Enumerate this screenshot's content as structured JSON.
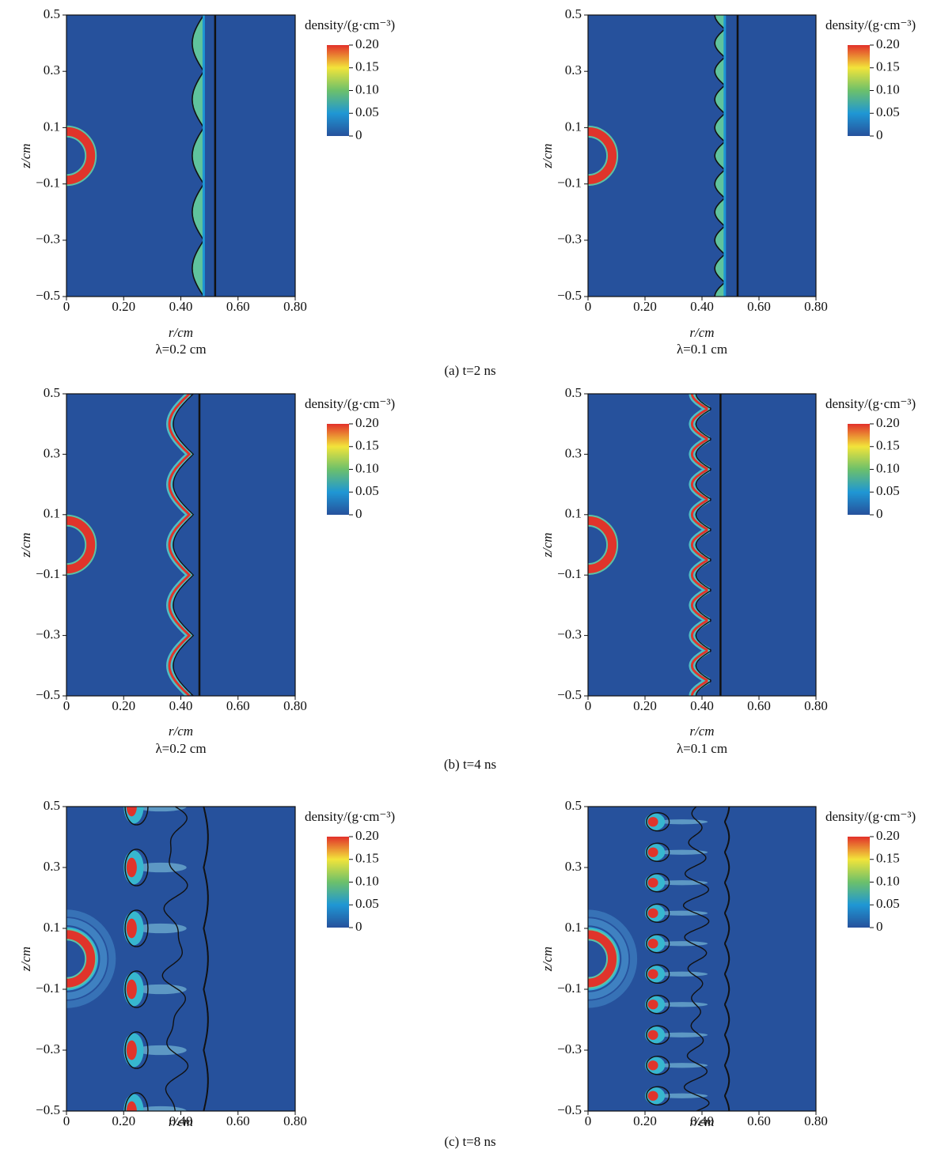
{
  "chart_data": [
    {
      "type": "heatmap",
      "xlabel": "r/cm",
      "ylabel": "z/cm",
      "subtitle": "λ=0.2 cm",
      "xlim": [
        0,
        0.8
      ],
      "xticks": [
        0,
        {
          "value": 0.2,
          "label": "0.20"
        },
        {
          "value": 0.4,
          "label": "0.40"
        },
        {
          "value": 0.6,
          "label": "0.60"
        },
        {
          "value": 0.8,
          "label": "0.80"
        }
      ],
      "ylim": [
        -0.5,
        0.5
      ],
      "yticks": [
        {
          "value": -0.5,
          "label": "−0.5"
        },
        {
          "value": -0.3,
          "label": "−0.3"
        },
        {
          "value": -0.1,
          "label": "−0.1"
        },
        0.1,
        0.3,
        0.5
      ],
      "colorbar": {
        "label": "density/(g·cm⁻³)",
        "lim": [
          0,
          0.2
        ],
        "ticks": [
          0,
          0.05,
          {
            "value": 0.1,
            "label": "0.10"
          },
          0.15,
          {
            "value": 0.2,
            "label": "0.20"
          }
        ],
        "colors": [
          "#26519c",
          "#1f97d4",
          "#6cc06b",
          "#f2e43a",
          "#e2312a"
        ]
      }
    },
    {
      "type": "heatmap",
      "xlabel": "r/cm",
      "ylabel": "z/cm",
      "subtitle": "λ=0.1 cm",
      "xlim": [
        0,
        0.8
      ],
      "xticks": [
        0,
        {
          "value": 0.2,
          "label": "0.20"
        },
        {
          "value": 0.4,
          "label": "0.40"
        },
        {
          "value": 0.6,
          "label": "0.60"
        },
        {
          "value": 0.8,
          "label": "0.80"
        }
      ],
      "ylim": [
        -0.5,
        0.5
      ],
      "yticks": [
        {
          "value": -0.5,
          "label": "−0.5"
        },
        {
          "value": -0.3,
          "label": "−0.3"
        },
        {
          "value": -0.1,
          "label": "−0.1"
        },
        0.1,
        0.3,
        0.5
      ],
      "colorbar": {
        "label": "density/(g·cm⁻³)",
        "lim": [
          0,
          0.2
        ],
        "ticks": [
          0,
          0.05,
          {
            "value": 0.1,
            "label": "0.10"
          },
          0.15,
          {
            "value": 0.2,
            "label": "0.20"
          }
        ],
        "colors": [
          "#26519c",
          "#1f97d4",
          "#6cc06b",
          "#f2e43a",
          "#e2312a"
        ]
      }
    },
    {
      "type": "heatmap",
      "xlabel": "r/cm",
      "ylabel": "z/cm",
      "subtitle": "λ=0.2 cm",
      "xlim": [
        0,
        0.8
      ],
      "xticks": [
        0,
        {
          "value": 0.2,
          "label": "0.20"
        },
        {
          "value": 0.4,
          "label": "0.40"
        },
        {
          "value": 0.6,
          "label": "0.60"
        },
        {
          "value": 0.8,
          "label": "0.80"
        }
      ],
      "ylim": [
        -0.5,
        0.5
      ],
      "yticks": [
        {
          "value": -0.5,
          "label": "−0.5"
        },
        {
          "value": -0.3,
          "label": "−0.3"
        },
        {
          "value": -0.1,
          "label": "−0.1"
        },
        0.1,
        0.3,
        0.5
      ],
      "colorbar": {
        "label": "density/(g·cm⁻³)",
        "lim": [
          0,
          0.2
        ],
        "ticks": [
          0,
          0.05,
          {
            "value": 0.1,
            "label": "0.10"
          },
          0.15,
          {
            "value": 0.2,
            "label": "0.20"
          }
        ],
        "colors": [
          "#26519c",
          "#1f97d4",
          "#6cc06b",
          "#f2e43a",
          "#e2312a"
        ]
      }
    },
    {
      "type": "heatmap",
      "xlabel": "r/cm",
      "ylabel": "z/cm",
      "subtitle": "λ=0.1 cm",
      "xlim": [
        0,
        0.8
      ],
      "xticks": [
        0,
        {
          "value": 0.2,
          "label": "0.20"
        },
        {
          "value": 0.4,
          "label": "0.40"
        },
        {
          "value": 0.6,
          "label": "0.60"
        },
        {
          "value": 0.8,
          "label": "0.80"
        }
      ],
      "ylim": [
        -0.5,
        0.5
      ],
      "yticks": [
        {
          "value": -0.5,
          "label": "−0.5"
        },
        {
          "value": -0.3,
          "label": "−0.3"
        },
        {
          "value": -0.1,
          "label": "−0.1"
        },
        0.1,
        0.3,
        0.5
      ],
      "colorbar": {
        "label": "density/(g·cm⁻³)",
        "lim": [
          0,
          0.2
        ],
        "ticks": [
          0,
          0.05,
          {
            "value": 0.1,
            "label": "0.10"
          },
          0.15,
          {
            "value": 0.2,
            "label": "0.20"
          }
        ],
        "colors": [
          "#26519c",
          "#1f97d4",
          "#6cc06b",
          "#f2e43a",
          "#e2312a"
        ]
      }
    },
    {
      "type": "heatmap",
      "xlabel": "r/cm",
      "ylabel": "z/cm",
      "xlim": [
        0,
        0.8
      ],
      "xticks": [
        0,
        {
          "value": 0.2,
          "label": "0.20"
        },
        {
          "value": 0.4,
          "label": "0.40"
        },
        {
          "value": 0.6,
          "label": "0.60"
        },
        {
          "value": 0.8,
          "label": "0.80"
        }
      ],
      "ylim": [
        -0.5,
        0.5
      ],
      "yticks": [
        {
          "value": -0.5,
          "label": "−0.5"
        },
        {
          "value": -0.3,
          "label": "−0.3"
        },
        {
          "value": -0.1,
          "label": "−0.1"
        },
        0.1,
        0.3,
        0.5
      ],
      "colorbar": {
        "label": "density/(g·cm⁻³)",
        "lim": [
          0,
          0.2
        ],
        "ticks": [
          0,
          0.05,
          {
            "value": 0.1,
            "label": "0.10"
          },
          0.15,
          {
            "value": 0.2,
            "label": "0.20"
          }
        ],
        "colors": [
          "#26519c",
          "#1f97d4",
          "#6cc06b",
          "#f2e43a",
          "#e2312a"
        ]
      }
    },
    {
      "type": "heatmap",
      "xlabel": "r/cm",
      "ylabel": "z/cm",
      "xlim": [
        0,
        0.8
      ],
      "xticks": [
        0,
        {
          "value": 0.2,
          "label": "0.20"
        },
        {
          "value": 0.4,
          "label": "0.40"
        },
        {
          "value": 0.6,
          "label": "0.60"
        },
        {
          "value": 0.8,
          "label": "0.80"
        }
      ],
      "ylim": [
        -0.5,
        0.5
      ],
      "yticks": [
        {
          "value": -0.5,
          "label": "−0.5"
        },
        {
          "value": -0.3,
          "label": "−0.3"
        },
        {
          "value": -0.1,
          "label": "−0.1"
        },
        0.1,
        0.3,
        0.5
      ],
      "colorbar": {
        "label": "density/(g·cm⁻³)",
        "lim": [
          0,
          0.2
        ],
        "ticks": [
          0,
          0.05,
          {
            "value": 0.1,
            "label": "0.10"
          },
          0.15,
          {
            "value": 0.2,
            "label": "0.20"
          }
        ],
        "colors": [
          "#26519c",
          "#1f97d4",
          "#6cc06b",
          "#f2e43a",
          "#e2312a"
        ]
      }
    }
  ],
  "captions": [
    "(a) t=2 ns",
    "(b) t=4 ns",
    "(c) t=8 ns"
  ]
}
